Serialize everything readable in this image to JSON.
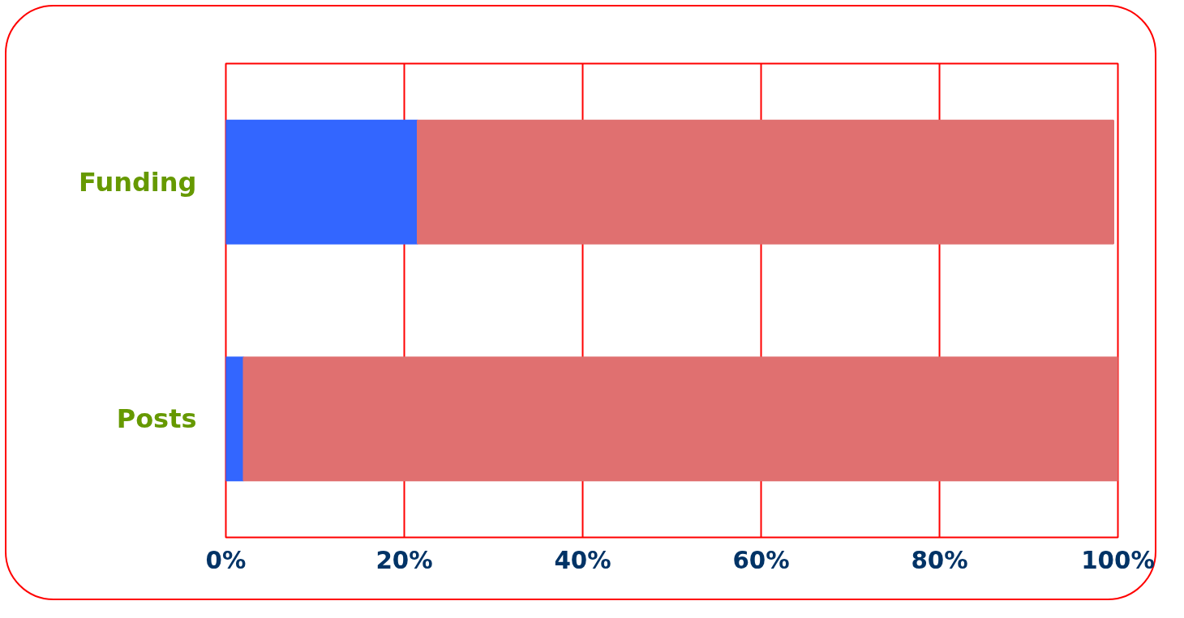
{
  "chart_data": {
    "type": "bar",
    "orientation": "horizontal",
    "stacked": true,
    "categories": [
      "Funding",
      "Posts"
    ],
    "series": [
      {
        "color": "#3366ff",
        "values": [
          21.5,
          2
        ]
      },
      {
        "color": "#e07070",
        "values": [
          78,
          98
        ]
      }
    ],
    "xlim": [
      0,
      100
    ],
    "xticks": [
      {
        "value": 0,
        "label": "0%"
      },
      {
        "value": 20,
        "label": "20%"
      },
      {
        "value": 40,
        "label": "40%"
      },
      {
        "value": 60,
        "label": "60%"
      },
      {
        "value": 80,
        "label": "80%"
      },
      {
        "value": 100,
        "label": "100%"
      }
    ],
    "grid": "x"
  }
}
